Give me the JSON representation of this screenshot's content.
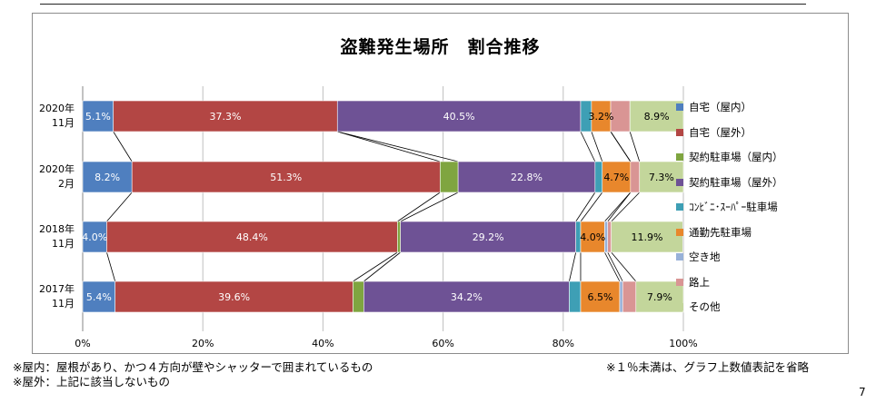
{
  "chart_data": {
    "type": "bar",
    "orientation": "horizontal",
    "stacked": "100%",
    "title": "盗難発生場所　割合推移",
    "categories": [
      [
        "2020年",
        "11月"
      ],
      [
        "2020年",
        "2月"
      ],
      [
        "2018年",
        "11月"
      ],
      [
        "2017年",
        "11月"
      ]
    ],
    "series": [
      {
        "name": "自宅（屋内）",
        "color": "#4f7fbf",
        "values": [
          5.1,
          8.2,
          4.0,
          5.4
        ]
      },
      {
        "name": "自宅（屋外）",
        "color": "#b34644",
        "values": [
          37.3,
          51.3,
          48.4,
          39.6
        ]
      },
      {
        "name": "契約駐車場（屋内）",
        "color": "#7fa540",
        "values": [
          0.0,
          3.0,
          0.5,
          1.8
        ]
      },
      {
        "name": "契約駐車場（屋外）",
        "color": "#6e5295",
        "values": [
          40.5,
          22.8,
          29.2,
          34.2
        ]
      },
      {
        "name": "ｺﾝﾋﾞﾆ･ｽｰﾊﾟｰ駐車場",
        "color": "#3e9fb5",
        "values": [
          1.8,
          1.2,
          0.8,
          1.9
        ]
      },
      {
        "name": "通勤先駐車場",
        "color": "#e8872c",
        "values": [
          3.2,
          4.7,
          4.0,
          6.5
        ]
      },
      {
        "name": "空き地",
        "color": "#98b1d8",
        "values": [
          0.0,
          0.0,
          0.5,
          0.5
        ]
      },
      {
        "name": "路上",
        "color": "#d99594",
        "values": [
          3.2,
          1.5,
          0.6,
          2.2
        ]
      },
      {
        "name": "その他",
        "color": "#c3d69b",
        "values": [
          8.9,
          7.3,
          11.9,
          7.9
        ]
      }
    ],
    "data_labels": [
      [
        "5.1%",
        "37.3%",
        "",
        "40.5%",
        "",
        "3.2%",
        "",
        "",
        "8.9%"
      ],
      [
        "8.2%",
        "51.3%",
        "",
        "22.8%",
        "",
        "4.7%",
        "",
        "",
        "7.3%"
      ],
      [
        "4.0%",
        "48.4%",
        "",
        "29.2%",
        "",
        "4.0%",
        "",
        "",
        "11.9%"
      ],
      [
        "5.4%",
        "39.6%",
        "",
        "34.2%",
        "",
        "6.5%",
        "",
        "",
        "7.9%"
      ]
    ],
    "label_colors": [
      "#ffffff",
      "#ffffff",
      "#ffffff",
      "#ffffff",
      "#ffffff",
      "#000000",
      "#000000",
      "#000000",
      "#000000"
    ],
    "xlim": [
      0,
      100
    ],
    "xticks": [
      "0%",
      "20%",
      "40%",
      "60%",
      "80%",
      "100%"
    ],
    "grid": true,
    "legend": "right",
    "series_lines": true
  },
  "notes": {
    "left_line1": "※屋内：屋根があり、かつ４方向が壁やシャッターで囲まれているもの",
    "left_line2": "※屋外：上記に該当しないもの",
    "right": "※１％未満は、グラフ上数値表記を省略"
  },
  "page_number": "7"
}
